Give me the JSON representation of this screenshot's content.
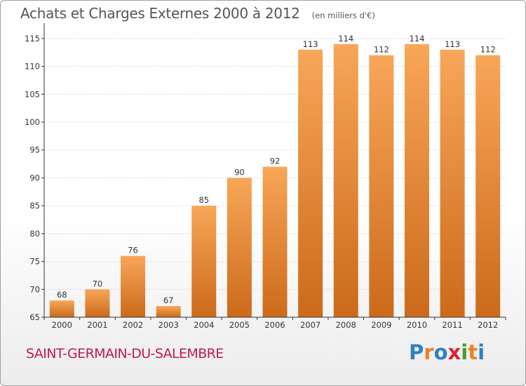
{
  "header": {
    "title": "Achats et Charges Externes 2000 à 2012",
    "subtitle": "(en milliers d'€)"
  },
  "footer": {
    "town": "SAINT-GERMAIN-DU-SALEMBRE",
    "logo": "Proxiti",
    "logo_letters": [
      {
        "ch": "P",
        "color": "#2f7fc8"
      },
      {
        "ch": "r",
        "color": "#f08020"
      },
      {
        "ch": "o",
        "color": "#2f7fc8"
      },
      {
        "ch": "x",
        "color": "#e02030"
      },
      {
        "ch": "i",
        "color": "#40a030"
      },
      {
        "ch": "t",
        "color": "#f08020"
      },
      {
        "ch": "i",
        "color": "#2f7fc8"
      }
    ]
  },
  "colors": {
    "bar_light": "#f8a658",
    "bar_dark": "#cc6a1a",
    "axis": "#333333",
    "grid": "#c8c8c8",
    "title": "#555555",
    "town": "#c0185a"
  },
  "chart_data": {
    "type": "bar",
    "categories": [
      "2000",
      "2001",
      "2002",
      "2003",
      "2004",
      "2005",
      "2006",
      "2007",
      "2008",
      "2009",
      "2010",
      "2011",
      "2012"
    ],
    "values": [
      68,
      70,
      76,
      67,
      85,
      90,
      92,
      113,
      114,
      112,
      114,
      113,
      112
    ],
    "ylim": [
      65,
      117
    ],
    "yticks": [
      65,
      70,
      75,
      80,
      85,
      90,
      95,
      100,
      105,
      110,
      115
    ],
    "grid": "horizontal dotted",
    "legend": "none",
    "data_labels": true
  }
}
